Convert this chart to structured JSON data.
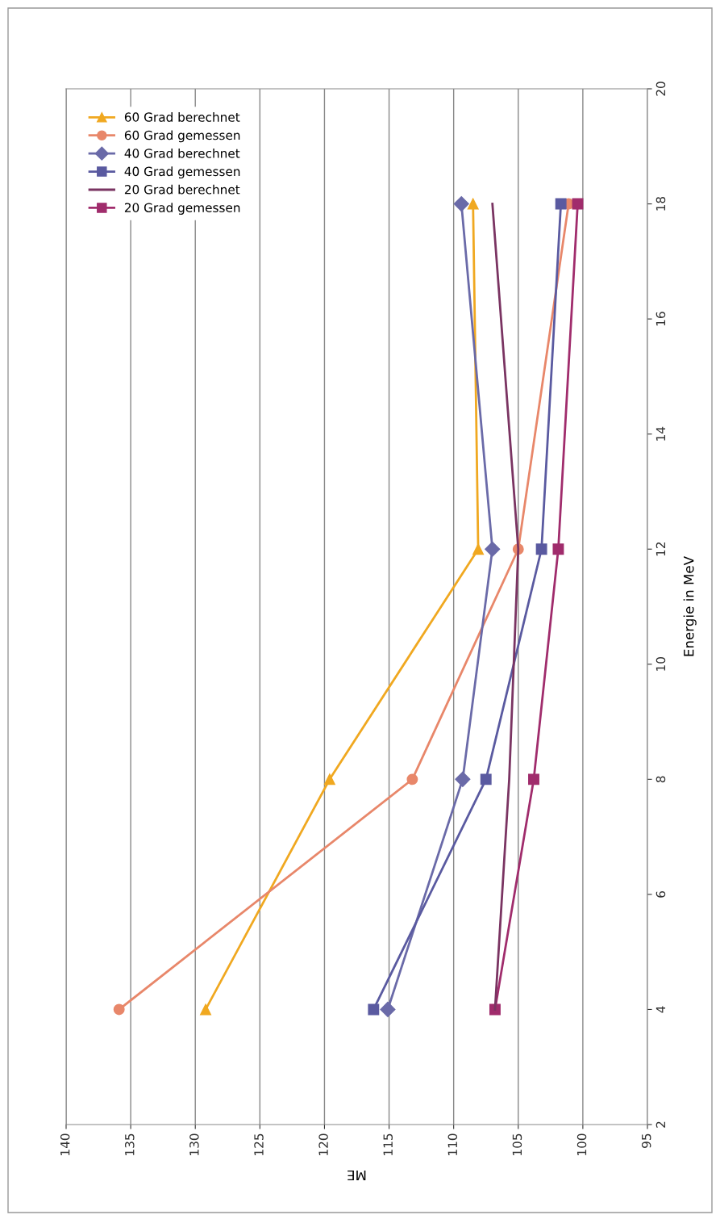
{
  "chart_data": {
    "type": "line",
    "xlabel": "ME",
    "ylabel": "Energie in MeV",
    "xlim": [
      140,
      95
    ],
    "xticks": [
      140,
      135,
      130,
      125,
      120,
      115,
      110,
      105,
      100,
      95
    ],
    "ylim": [
      2,
      20
    ],
    "yticks": [
      2,
      4,
      6,
      8,
      10,
      12,
      14,
      16,
      18,
      20
    ],
    "grid": "x",
    "legend": "top left",
    "series": [
      {
        "name": "60 Grad berechnet",
        "color": "#f0a820",
        "marker": "triangle",
        "x": [
          129.2,
          119.6,
          108.1,
          108.5
        ],
        "values": [
          4,
          8,
          12,
          18
        ]
      },
      {
        "name": "60 Grad gemessen",
        "color": "#e8876a",
        "marker": "circle",
        "x": [
          135.9,
          113.2,
          105.0,
          101.1
        ],
        "values": [
          4,
          8,
          12,
          18
        ]
      },
      {
        "name": "40 Grad berechnet",
        "color": "#6a6aa8",
        "marker": "diamond",
        "x": [
          115.1,
          109.3,
          107.0,
          109.4
        ],
        "values": [
          4,
          8,
          12,
          18
        ]
      },
      {
        "name": "40 Grad gemessen",
        "color": "#5a5aa0",
        "marker": "square",
        "x": [
          116.2,
          107.5,
          103.2,
          101.7
        ],
        "values": [
          4,
          8,
          12,
          18
        ]
      },
      {
        "name": "20 Grad berechnet",
        "color": "#7a3462",
        "marker": "none",
        "x": [
          106.8,
          105.7,
          105.0,
          107.0
        ],
        "values": [
          4,
          8,
          12,
          18
        ]
      },
      {
        "name": "20 Grad gemessen",
        "color": "#a02c6c",
        "marker": "square",
        "x": [
          106.8,
          103.8,
          101.9,
          100.4
        ],
        "values": [
          4,
          8,
          12,
          18
        ]
      }
    ]
  }
}
